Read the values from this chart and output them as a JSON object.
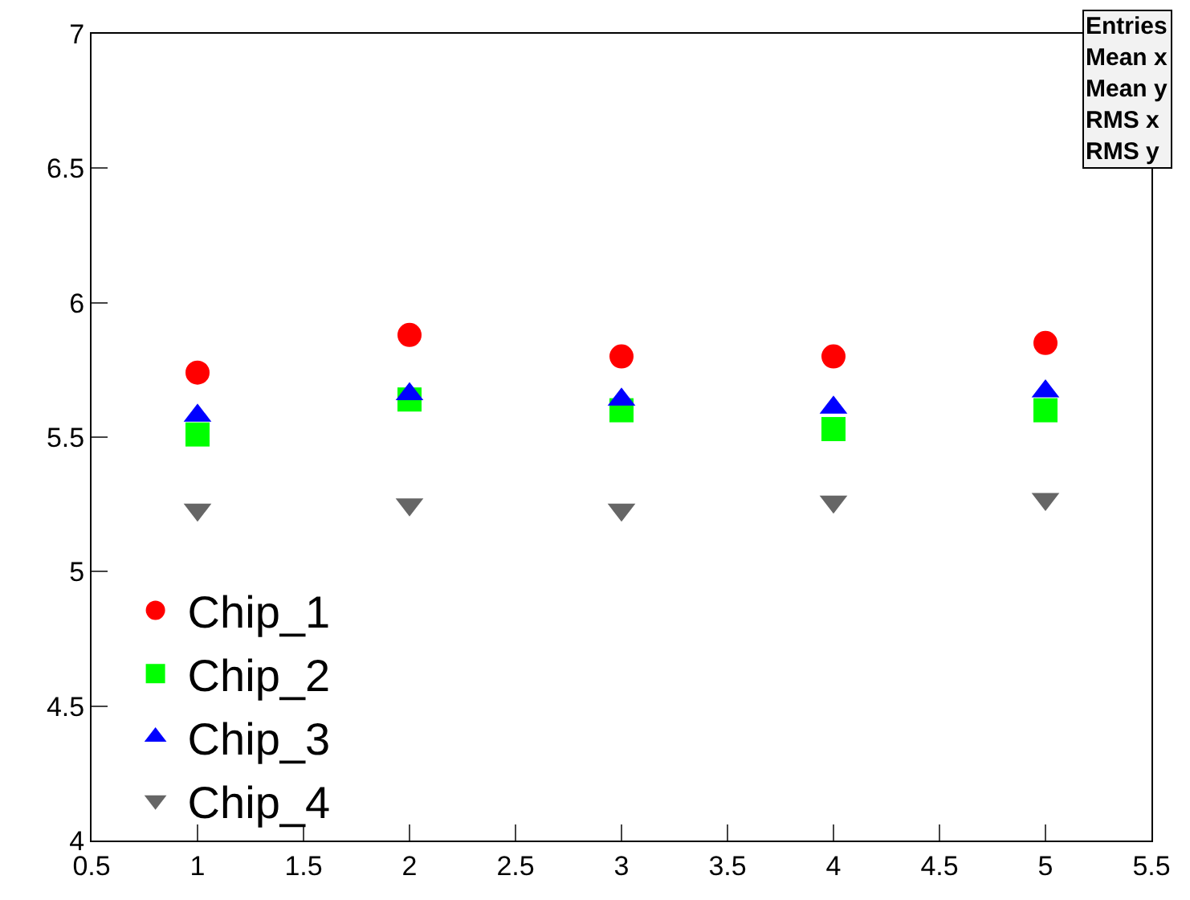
{
  "chart_data": {
    "type": "scatter",
    "x": [
      1,
      2,
      3,
      4,
      5
    ],
    "series": [
      {
        "name": "Chip_1",
        "color": "#ff0000",
        "marker": "circle",
        "values": [
          5.74,
          5.88,
          5.8,
          5.8,
          5.85
        ]
      },
      {
        "name": "Chip_2",
        "color": "#00ff00",
        "marker": "square",
        "values": [
          5.51,
          5.64,
          5.6,
          5.53,
          5.6
        ]
      },
      {
        "name": "Chip_3",
        "color": "#0000ff",
        "marker": "triangle",
        "values": [
          5.58,
          5.66,
          5.64,
          5.61,
          5.67
        ]
      },
      {
        "name": "Chip_4",
        "color": "#666666",
        "marker": "triangle-down",
        "values": [
          5.23,
          5.25,
          5.23,
          5.26,
          5.27
        ]
      }
    ],
    "xlim": [
      0.5,
      5.5
    ],
    "xticks": [
      0.5,
      1,
      1.5,
      2,
      2.5,
      3,
      3.5,
      4,
      4.5,
      5,
      5.5
    ],
    "ylim": [
      4,
      7
    ],
    "yticks": [
      4,
      4.5,
      5,
      5.5,
      6,
      6.5,
      7
    ],
    "legend": "bottom left",
    "annotations": [
      "Entries",
      "Mean x",
      "Mean y",
      "RMS x",
      "RMS y"
    ]
  }
}
